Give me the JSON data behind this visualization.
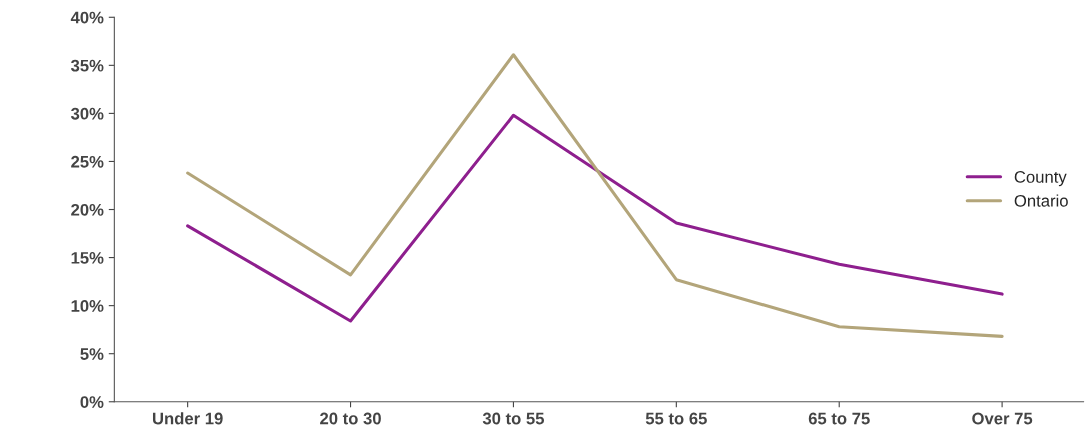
{
  "chart_data": {
    "type": "line",
    "categories": [
      "Under 19",
      "20 to 30",
      "30 to 55",
      "55 to 65",
      "65 to 75",
      "Over 75"
    ],
    "series": [
      {
        "name": "County",
        "color": "#8e1f8e",
        "values": [
          18.3,
          8.4,
          29.8,
          18.6,
          14.3,
          11.2
        ]
      },
      {
        "name": "Ontario",
        "color": "#b3a57a",
        "values": [
          23.8,
          13.2,
          36.1,
          12.7,
          7.8,
          6.8
        ]
      }
    ],
    "ylim": [
      0,
      40
    ],
    "yticks": [
      {
        "value": 0,
        "label": "0%"
      },
      {
        "value": 5,
        "label": "5%"
      },
      {
        "value": 10,
        "label": "10%"
      },
      {
        "value": 15,
        "label": "15%"
      },
      {
        "value": 20,
        "label": "20%"
      },
      {
        "value": 25,
        "label": "25%"
      },
      {
        "value": 30,
        "label": "30%"
      },
      {
        "value": 35,
        "label": "35%"
      },
      {
        "value": 40,
        "label": "40%"
      }
    ],
    "grid": false,
    "legend": "right",
    "marker": "none",
    "line_style": "solid"
  }
}
